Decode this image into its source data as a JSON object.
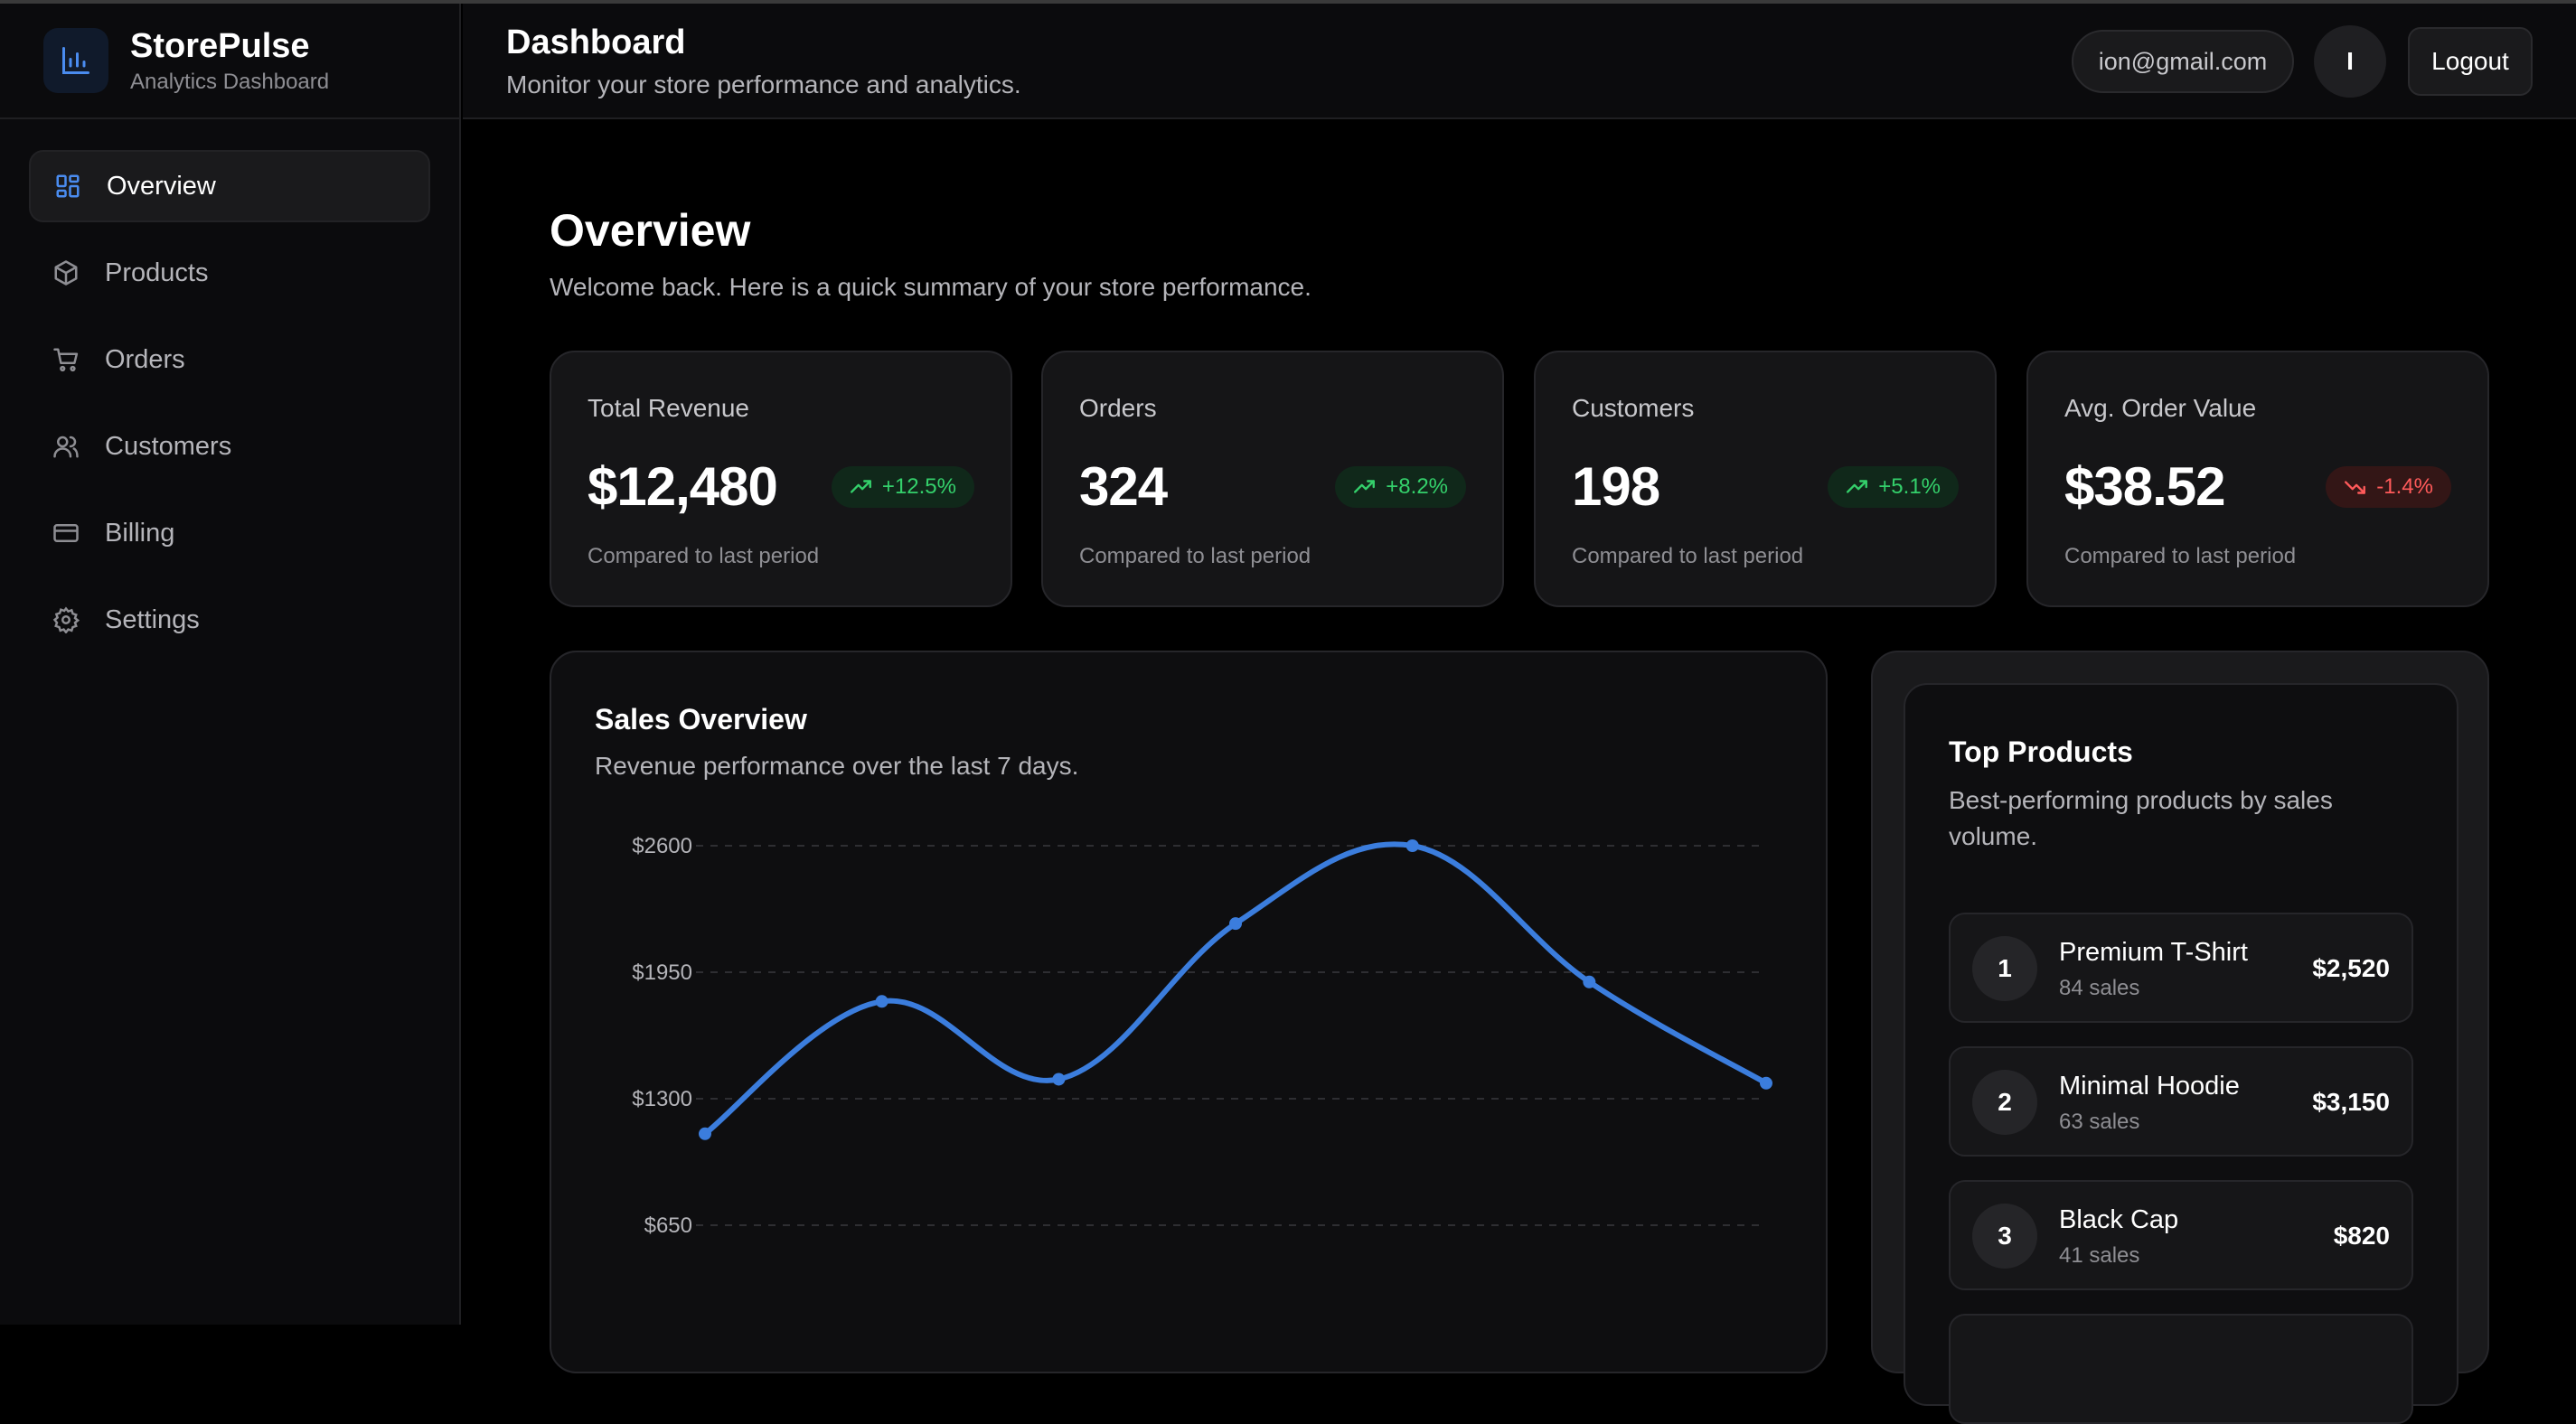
{
  "app": {
    "name": "StorePulse",
    "subtitle": "Analytics Dashboard"
  },
  "sidebar": {
    "items": [
      {
        "label": "Overview",
        "icon": "grid-icon",
        "active": true
      },
      {
        "label": "Products",
        "icon": "box-icon"
      },
      {
        "label": "Orders",
        "icon": "cart-icon"
      },
      {
        "label": "Customers",
        "icon": "users-icon"
      },
      {
        "label": "Billing",
        "icon": "card-icon"
      },
      {
        "label": "Settings",
        "icon": "gear-icon"
      }
    ]
  },
  "header": {
    "title": "Dashboard",
    "subtitle": "Monitor your store performance and analytics.",
    "email": "ion@gmail.com",
    "avatar_initial": "I",
    "logout_label": "Logout"
  },
  "overview": {
    "title": "Overview",
    "subtitle": "Welcome back. Here is a quick summary of your store performance."
  },
  "stats": [
    {
      "label": "Total Revenue",
      "value": "$12,480",
      "change": "+12.5%",
      "trend": "up",
      "footnote": "Compared to last period"
    },
    {
      "label": "Orders",
      "value": "324",
      "change": "+8.2%",
      "trend": "up",
      "footnote": "Compared to last period"
    },
    {
      "label": "Customers",
      "value": "198",
      "change": "+5.1%",
      "trend": "up",
      "footnote": "Compared to last period"
    },
    {
      "label": "Avg. Order Value",
      "value": "$38.52",
      "change": "-1.4%",
      "trend": "down",
      "footnote": "Compared to last period"
    }
  ],
  "sales": {
    "title": "Sales Overview",
    "subtitle": "Revenue performance over the last 7 days."
  },
  "chart_data": {
    "type": "line",
    "title": "Sales Overview",
    "ytick_labels": [
      "$2600",
      "$1950",
      "$1300",
      "$650"
    ],
    "yticks": [
      2600,
      1950,
      1300,
      650
    ],
    "ylim": [
      650,
      2600
    ],
    "x": [
      1,
      2,
      3,
      4,
      5,
      6,
      7
    ],
    "values": [
      1120,
      1800,
      1400,
      2200,
      2600,
      1900,
      1380
    ],
    "line_color": "#3b7ddd",
    "grid": true
  },
  "top_products": {
    "title": "Top Products",
    "subtitle": "Best-performing products by sales volume.",
    "items": [
      {
        "rank": "1",
        "name": "Premium T-Shirt",
        "sales": "84 sales",
        "revenue": "$2,520"
      },
      {
        "rank": "2",
        "name": "Minimal Hoodie",
        "sales": "63 sales",
        "revenue": "$3,150"
      },
      {
        "rank": "3",
        "name": "Black Cap",
        "sales": "41 sales",
        "revenue": "$820"
      }
    ]
  },
  "colors": {
    "accent": "#3b7ddd",
    "positive": "#34d06b",
    "negative": "#ff5a5a",
    "background": "#000000"
  }
}
